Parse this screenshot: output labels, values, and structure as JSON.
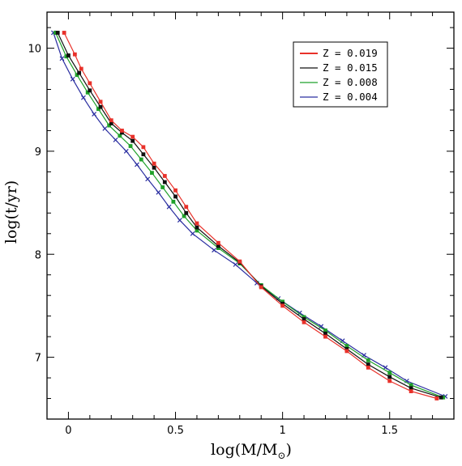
{
  "chart_data": {
    "type": "line",
    "title": "",
    "xlabel": "log(M/M",
    "xlabel_sub": "⊙",
    "xlabel_close": ")",
    "ylabel": "log(t/yr)",
    "xlim": [
      -0.1,
      1.8
    ],
    "ylim": [
      6.4,
      10.35
    ],
    "x_ticks": [
      0,
      0.5,
      1,
      1.5
    ],
    "x_tick_labels": [
      "0",
      "0.5",
      "1",
      "1.5"
    ],
    "y_ticks": [
      7,
      8,
      9,
      10
    ],
    "y_tick_labels": [
      "7",
      "8",
      "9",
      "10"
    ],
    "grid": false,
    "legend_position": "top-right",
    "series": [
      {
        "name": "Z = 0.019",
        "color": "#e8312a",
        "marker": "filled-square",
        "x": [
          -0.02,
          0.03,
          0.06,
          0.1,
          0.15,
          0.2,
          0.25,
          0.3,
          0.35,
          0.4,
          0.45,
          0.5,
          0.55,
          0.6,
          0.7,
          0.8,
          0.9,
          1.0,
          1.1,
          1.2,
          1.3,
          1.4,
          1.5,
          1.6,
          1.72
        ],
        "y": [
          10.15,
          9.94,
          9.8,
          9.66,
          9.48,
          9.3,
          9.2,
          9.14,
          9.04,
          8.88,
          8.76,
          8.62,
          8.46,
          8.3,
          8.11,
          7.93,
          7.68,
          7.5,
          7.34,
          7.2,
          7.06,
          6.9,
          6.77,
          6.67,
          6.6
        ]
      },
      {
        "name": "Z = 0.015",
        "color": "#111111",
        "marker": "filled-square",
        "x": [
          -0.05,
          0.0,
          0.05,
          0.1,
          0.15,
          0.2,
          0.25,
          0.3,
          0.35,
          0.4,
          0.45,
          0.5,
          0.55,
          0.6,
          0.7,
          0.8,
          0.9,
          1.0,
          1.1,
          1.2,
          1.3,
          1.4,
          1.5,
          1.6,
          1.74
        ],
        "y": [
          10.15,
          9.93,
          9.76,
          9.59,
          9.43,
          9.27,
          9.18,
          9.1,
          8.97,
          8.84,
          8.7,
          8.56,
          8.4,
          8.26,
          8.08,
          7.92,
          7.69,
          7.52,
          7.37,
          7.23,
          7.08,
          6.93,
          6.81,
          6.7,
          6.61
        ]
      },
      {
        "name": "Z = 0.008",
        "color": "#1fa12a",
        "marker": "filled-square",
        "x": [
          -0.06,
          -0.01,
          0.04,
          0.09,
          0.14,
          0.19,
          0.24,
          0.29,
          0.34,
          0.39,
          0.44,
          0.49,
          0.54,
          0.6,
          0.7,
          0.8,
          0.9,
          1.0,
          1.1,
          1.2,
          1.3,
          1.4,
          1.5,
          1.6,
          1.75
        ],
        "y": [
          10.15,
          9.92,
          9.74,
          9.57,
          9.41,
          9.25,
          9.15,
          9.05,
          8.92,
          8.79,
          8.65,
          8.51,
          8.37,
          8.23,
          8.06,
          7.91,
          7.7,
          7.54,
          7.39,
          7.26,
          7.11,
          6.97,
          6.85,
          6.73,
          6.61
        ]
      },
      {
        "name": "Z = 0.004",
        "color": "#2a2ea0",
        "marker": "cross",
        "x": [
          -0.07,
          -0.03,
          0.02,
          0.07,
          0.12,
          0.17,
          0.22,
          0.27,
          0.32,
          0.37,
          0.42,
          0.47,
          0.52,
          0.58,
          0.68,
          0.78,
          0.88,
          0.98,
          1.08,
          1.18,
          1.28,
          1.38,
          1.48,
          1.58,
          1.76
        ],
        "y": [
          10.15,
          9.9,
          9.7,
          9.52,
          9.36,
          9.22,
          9.11,
          9.0,
          8.87,
          8.73,
          8.6,
          8.46,
          8.33,
          8.2,
          8.04,
          7.9,
          7.72,
          7.57,
          7.43,
          7.3,
          7.16,
          7.02,
          6.9,
          6.77,
          6.62
        ]
      }
    ]
  }
}
